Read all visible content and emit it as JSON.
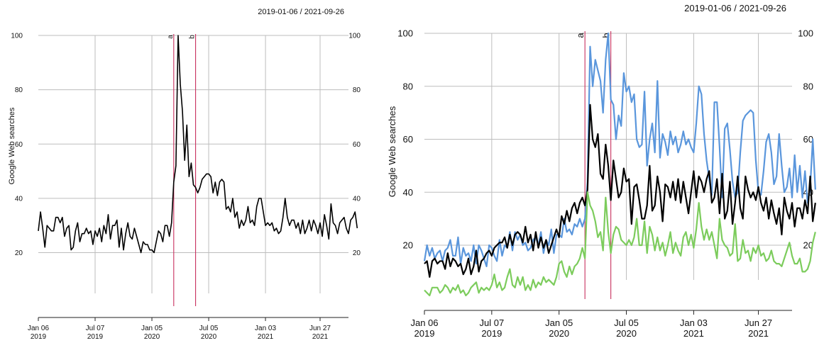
{
  "chart_data": [
    {
      "type": "line",
      "title": "2019-01-06 / 2021-09-26",
      "ylabel": "Google Web searches",
      "ylim": [
        0,
        100
      ],
      "yticks": [
        20,
        40,
        60,
        80,
        100
      ],
      "xlim": [
        "2019-01-06",
        "2021-09-26"
      ],
      "xticks": [
        {
          "date": "2019-01-06",
          "line1": "Jan 06",
          "line2": "2019"
        },
        {
          "date": "2019-07-07",
          "line1": "Jul 07",
          "line2": "2019"
        },
        {
          "date": "2020-01-05",
          "line1": "Jan 05",
          "line2": "2020"
        },
        {
          "date": "2020-07-05",
          "line1": "Jul 05",
          "line2": "2020"
        },
        {
          "date": "2021-01-03",
          "line1": "Jan 03",
          "line2": "2021"
        },
        {
          "date": "2021-06-27",
          "line1": "Jun 27",
          "line2": "2021"
        }
      ],
      "grid": true,
      "events": [
        {
          "label": "a",
          "date": "2020-03-15"
        },
        {
          "label": "b",
          "date": "2020-05-24"
        }
      ],
      "series": [
        {
          "color": "#000000",
          "x_start": "2019-01-06",
          "step_days": 7,
          "values": [
            28,
            35,
            29,
            22,
            30,
            29,
            28,
            28,
            33,
            33,
            31,
            33,
            26,
            29,
            30,
            21,
            22,
            28,
            31,
            24,
            27,
            27,
            29,
            27,
            28,
            23,
            28,
            26,
            29,
            24,
            30,
            27,
            34,
            25,
            30,
            30,
            32,
            22,
            29,
            21,
            27,
            31,
            26,
            25,
            29,
            26,
            23,
            20,
            24,
            23,
            23,
            21,
            21,
            20,
            24,
            28,
            27,
            24,
            30,
            30,
            26,
            31,
            46,
            52,
            100,
            82,
            72,
            54,
            67,
            48,
            53,
            45,
            44,
            42,
            44,
            47,
            48,
            49,
            49,
            48,
            42,
            46,
            41,
            46,
            47,
            46,
            36,
            37,
            35,
            40,
            33,
            35,
            29,
            32,
            30,
            32,
            37,
            31,
            32,
            30,
            37,
            40,
            40,
            35,
            30,
            31,
            30,
            31,
            28,
            29,
            27,
            28,
            33,
            40,
            33,
            30,
            32,
            32,
            29,
            31,
            27,
            32,
            27,
            29,
            32,
            28,
            32,
            30,
            27,
            31,
            26,
            34,
            30,
            25,
            38,
            31,
            30,
            27,
            31,
            32,
            33,
            29,
            27,
            32,
            33,
            35,
            29
          ]
        }
      ]
    },
    {
      "type": "line",
      "title": "2019-01-06 / 2021-09-26",
      "ylabel": "Google Web searches",
      "ylim": [
        0,
        100
      ],
      "yticks": [
        20,
        40,
        60,
        80,
        100
      ],
      "xlim": [
        "2019-01-06",
        "2021-09-26"
      ],
      "xticks": [
        {
          "date": "2019-01-06",
          "line1": "Jan 06",
          "line2": "2019"
        },
        {
          "date": "2019-07-07",
          "line1": "Jul 07",
          "line2": "2019"
        },
        {
          "date": "2020-01-05",
          "line1": "Jan 05",
          "line2": "2020"
        },
        {
          "date": "2020-07-05",
          "line1": "Jul 05",
          "line2": "2020"
        },
        {
          "date": "2021-01-03",
          "line1": "Jan 03",
          "line2": "2021"
        },
        {
          "date": "2021-06-27",
          "line1": "Jun 27",
          "line2": "2021"
        }
      ],
      "grid": true,
      "events": [
        {
          "label": "a",
          "date": "2020-03-15"
        },
        {
          "label": "b",
          "date": "2020-05-24"
        }
      ],
      "series": [
        {
          "color": "#5a96dc",
          "x_start": "2019-01-06",
          "step_days": 7,
          "values": [
            14,
            20,
            16,
            19,
            15,
            17,
            18,
            14,
            18,
            19,
            22,
            16,
            16,
            23,
            13,
            19,
            16,
            17,
            14,
            20,
            13,
            20,
            18,
            15,
            12,
            20,
            19,
            16,
            14,
            22,
            16,
            20,
            19,
            25,
            18,
            25,
            22,
            24,
            20,
            21,
            18,
            19,
            22,
            23,
            20,
            25,
            17,
            22,
            20,
            26,
            17,
            24,
            24,
            23,
            30,
            25,
            26,
            24,
            28,
            27,
            30,
            27,
            30,
            44,
            95,
            80,
            90,
            86,
            82,
            70,
            90,
            100,
            75,
            73,
            60,
            69,
            65,
            85,
            78,
            80,
            74,
            77,
            60,
            57,
            58,
            78,
            50,
            60,
            66,
            55,
            82,
            53,
            62,
            59,
            54,
            63,
            58,
            61,
            55,
            58,
            63,
            58,
            60,
            57,
            55,
            66,
            80,
            77,
            62,
            52,
            45,
            39,
            74,
            74,
            57,
            38,
            64,
            66,
            56,
            44,
            38,
            40,
            55,
            67,
            69,
            70,
            71,
            70,
            52,
            40,
            39,
            48,
            59,
            62,
            55,
            43,
            46,
            62,
            50,
            40,
            42,
            49,
            38,
            54,
            40,
            50,
            38,
            48,
            36,
            42,
            60,
            41
          ]
        },
        {
          "color": "#000000",
          "x_start": "2019-01-06",
          "step_days": 7,
          "values": [
            13,
            14,
            8,
            14,
            15,
            13,
            14,
            14,
            11,
            17,
            12,
            15,
            14,
            12,
            13,
            9,
            11,
            15,
            9,
            12,
            18,
            10,
            14,
            15,
            17,
            18,
            16,
            19,
            20,
            21,
            21,
            23,
            19,
            24,
            20,
            24,
            25,
            24,
            21,
            27,
            21,
            24,
            18,
            25,
            19,
            23,
            19,
            22,
            17,
            20,
            23,
            26,
            23,
            31,
            28,
            33,
            29,
            34,
            36,
            32,
            36,
            38,
            35,
            41,
            73,
            60,
            57,
            62,
            47,
            45,
            58,
            50,
            37,
            52,
            45,
            38,
            40,
            49,
            44,
            45,
            28,
            42,
            43,
            37,
            30,
            30,
            35,
            50,
            33,
            35,
            46,
            40,
            29,
            43,
            42,
            38,
            44,
            37,
            45,
            36,
            44,
            38,
            32,
            40,
            48,
            38,
            46,
            44,
            40,
            45,
            48,
            36,
            38,
            45,
            32,
            47,
            30,
            33,
            44,
            28,
            36,
            46,
            34,
            30,
            46,
            41,
            38,
            40,
            37,
            42,
            36,
            33,
            38,
            30,
            37,
            32,
            28,
            34,
            24,
            38,
            33,
            30,
            36,
            27,
            34,
            34,
            30,
            37,
            32,
            46,
            29,
            36
          ]
        },
        {
          "color": "#7ccc5c",
          "x_start": "2019-01-06",
          "step_days": 7,
          "values": [
            3,
            2,
            1,
            4,
            4,
            4,
            2,
            3,
            5,
            4,
            2,
            4,
            3,
            5,
            2,
            3,
            1,
            2,
            4,
            5,
            6,
            2,
            4,
            3,
            4,
            3,
            5,
            9,
            4,
            6,
            3,
            4,
            8,
            11,
            5,
            4,
            8,
            5,
            8,
            3,
            5,
            3,
            7,
            4,
            6,
            5,
            8,
            6,
            7,
            6,
            5,
            8,
            13,
            14,
            10,
            8,
            12,
            9,
            12,
            13,
            15,
            19,
            15,
            40,
            35,
            33,
            29,
            23,
            25,
            18,
            38,
            25,
            17,
            24,
            27,
            26,
            22,
            21,
            20,
            22,
            20,
            23,
            30,
            20,
            20,
            29,
            17,
            27,
            24,
            18,
            23,
            18,
            21,
            16,
            20,
            25,
            17,
            21,
            18,
            16,
            23,
            25,
            20,
            24,
            19,
            26,
            36,
            27,
            22,
            26,
            22,
            25,
            20,
            15,
            30,
            22,
            20,
            19,
            16,
            17,
            28,
            14,
            15,
            22,
            17,
            18,
            14,
            19,
            17,
            20,
            16,
            17,
            14,
            15,
            18,
            14,
            13,
            13,
            12,
            15,
            18,
            21,
            16,
            13,
            13,
            15,
            10,
            10,
            11,
            14,
            21,
            25
          ]
        }
      ]
    }
  ]
}
